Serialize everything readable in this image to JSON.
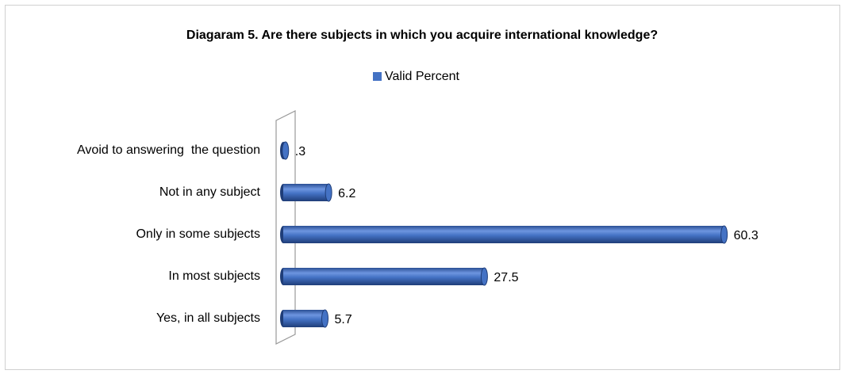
{
  "chart_data": {
    "type": "hbar",
    "title": "Diagaram 5. Are there subjects in which you acquire international knowledge?",
    "categories": [
      "Avoid to answering  the question",
      "Not in any subject",
      "Only in some subjects",
      "In most subjects",
      "Yes, in all subjects"
    ],
    "series": [
      {
        "name": "Valid Percent",
        "color": "#4472c4",
        "values": [
          0.3,
          6.2,
          60.3,
          27.5,
          5.7
        ],
        "value_labels": [
          ".3",
          "6.2",
          "60.3",
          "27.5",
          "5.7"
        ]
      }
    ],
    "xlim": [
      0,
      70
    ],
    "legend": "top"
  }
}
